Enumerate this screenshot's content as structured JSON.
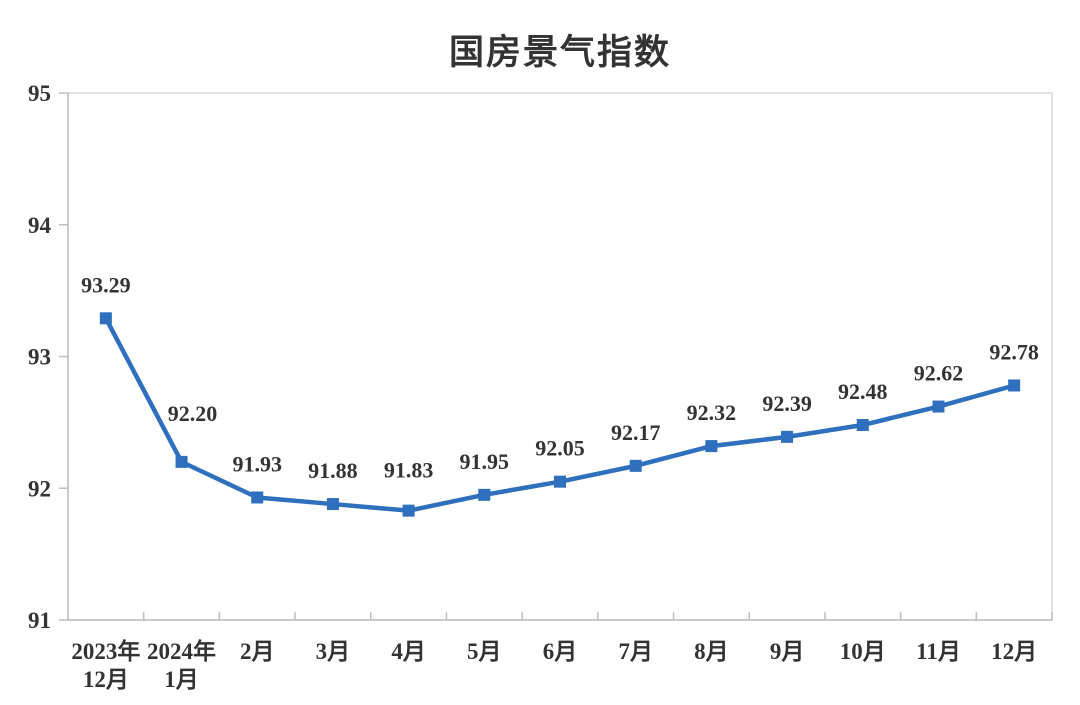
{
  "chart_data": {
    "type": "line",
    "title": "国房景气指数",
    "categories": [
      "2023年\n12月",
      "2024年\n1月",
      "2月",
      "3月",
      "4月",
      "5月",
      "6月",
      "7月",
      "8月",
      "9月",
      "10月",
      "11月",
      "12月"
    ],
    "series": [
      {
        "name": "国房景气指数",
        "values": [
          93.29,
          92.2,
          91.93,
          91.88,
          91.83,
          91.95,
          92.05,
          92.17,
          92.32,
          92.39,
          92.48,
          92.62,
          92.78
        ],
        "point_labels": [
          "93.29",
          "92.20",
          "91.93",
          "91.88",
          "91.83",
          "91.95",
          "92.05",
          "92.17",
          "92.32",
          "92.39",
          "92.48",
          "92.62",
          "92.78"
        ],
        "color": "#2E6FBE",
        "marker": "square"
      }
    ],
    "xlabel": "",
    "ylabel": "",
    "ylim": [
      91,
      95
    ],
    "yticks": [
      91,
      92,
      93,
      94,
      95
    ],
    "grid": "off",
    "legend": "none",
    "data_labels": "above",
    "colors": {
      "text": "#333333",
      "axis": "#BFBFBF",
      "border": "#D9D9D9",
      "background": "#FFFFFF"
    }
  }
}
